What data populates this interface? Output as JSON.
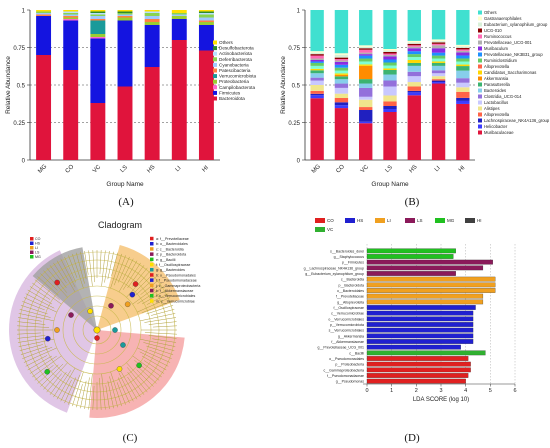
{
  "panel_labels": {
    "A": "(A)",
    "B": "(B)",
    "C": "(C)",
    "D": "(D)"
  },
  "colors": {
    "phylum": {
      "Others": "#ffe000",
      "Desulfobacterota": "#2e8b2e",
      "Actinobacteriota": "#b8e0ff",
      "Deferribacterota": "#8ad34f",
      "Cyanobacteria": "#a0c8ff",
      "Patescibacteria": "#ff8040",
      "Verrucomicrobiota": "#1a9a9a",
      "Proteobacteria": "#9acd32",
      "Campilobacterota": "#ff66cc",
      "Firmicutes": "#1414e0",
      "Bacteroidota": "#e0143c"
    },
    "genus": {
      "Others": "#40e0d0",
      "Gastranaerophilales": "#ffffcc",
      "Eubacterium_xylanophilum_group": "#d8f0d8",
      "UCG-010": "#8b0000",
      "Ruminococcus": "#ff69b4",
      "Prevotellaceae_UCG-001": "#b0b0b0",
      "Muribaculum": "#8a2be2",
      "Prevotellaceae_NK3B31_group": "#1e90ff",
      "Ruminiclostridium": "#66cc66",
      "Alloprevotella_top": "#7fffd4",
      "Candidatus_Saccharimonas": "#ffd700",
      "Akkermansia": "#ff8c00",
      "Parasutterella": "#3cb371",
      "Bacteroides": "#87ceeb",
      "Clostridia_UCG-014": "#9370db",
      "Lactobacillus": "#c8c8ff",
      "Alistipes": "#f0e68c",
      "Alloprevotella": "#ff6347",
      "Lachnospiraceae_NK4A136_group": "#2020c0",
      "Helicobacter": "#3c3cff",
      "Muribaculaceae": "#e0143c"
    },
    "groups": {
      "CO": "#e02020",
      "HS": "#2020d0",
      "LI": "#f0a020",
      "LS": "#8b1a5a",
      "MG": "#20c020",
      "HI": "#404040",
      "VC": "#30b030"
    }
  },
  "chart_data": [
    {
      "panel": "A",
      "type": "bar",
      "stacked": true,
      "ylabel": "Relative Abundance",
      "xlabel": "Group Name",
      "ylim": [
        0,
        1
      ],
      "yticks": [
        "0",
        "0.25",
        "0.5",
        "0.75",
        "1"
      ],
      "categories": [
        "MG",
        "CO",
        "VC",
        "LS",
        "HS",
        "LI",
        "HI"
      ],
      "legend": [
        "Others",
        "Desulfobacterota",
        "Actinobacteriota",
        "Deferribacterota",
        "Cyanobacteria",
        "Patescibacteria",
        "Verrucomicrobiota",
        "Proteobacteria",
        "Campilobacterota",
        "Firmicutes",
        "Bacteroidota"
      ],
      "series": [
        {
          "name": "Bacteroidota",
          "values": [
            0.7,
            0.6,
            0.38,
            0.49,
            0.62,
            0.8,
            0.73
          ]
        },
        {
          "name": "Firmicutes",
          "values": [
            0.26,
            0.33,
            0.43,
            0.44,
            0.28,
            0.14,
            0.17
          ]
        },
        {
          "name": "Campilobacterota",
          "values": [
            0.0,
            0.01,
            0.01,
            0.0,
            0.0,
            0.0,
            0.0
          ]
        },
        {
          "name": "Proteobacteria",
          "values": [
            0.0,
            0.01,
            0.02,
            0.02,
            0.02,
            0.02,
            0.02
          ]
        },
        {
          "name": "Verrucomicrobiota",
          "values": [
            0.0,
            0.0,
            0.09,
            0.0,
            0.0,
            0.0,
            0.0
          ]
        },
        {
          "name": "Patescibacteria",
          "values": [
            0.01,
            0.01,
            0.01,
            0.01,
            0.02,
            0.0,
            0.01
          ]
        },
        {
          "name": "Cyanobacteria",
          "values": [
            0.01,
            0.01,
            0.02,
            0.01,
            0.02,
            0.01,
            0.02
          ]
        },
        {
          "name": "Deferribacterota",
          "values": [
            0.01,
            0.01,
            0.01,
            0.01,
            0.02,
            0.01,
            0.02
          ]
        },
        {
          "name": "Actinobacteriota",
          "values": [
            0.0,
            0.01,
            0.01,
            0.0,
            0.01,
            0.0,
            0.01
          ]
        },
        {
          "name": "Desulfobacterota",
          "values": [
            0.0,
            0.0,
            0.01,
            0.01,
            0.0,
            0.0,
            0.01
          ]
        },
        {
          "name": "Others",
          "values": [
            0.01,
            0.01,
            0.01,
            0.01,
            0.01,
            0.02,
            0.01
          ]
        }
      ]
    },
    {
      "panel": "B",
      "type": "bar",
      "stacked": true,
      "ylabel": "Relative Abundance",
      "xlabel": "Group Name",
      "ylim": [
        0,
        1
      ],
      "yticks": [
        "0",
        "0.25",
        "0.5",
        "0.75",
        "1"
      ],
      "categories": [
        "MG",
        "CO",
        "VC",
        "LS",
        "HS",
        "LI",
        "HI"
      ],
      "legend": [
        "Others",
        "Gastranaerophilales",
        "Eubacterium_xylanophilum_group",
        "UCG-010",
        "Ruminococcus",
        "Prevotellaceae_UCG-001",
        "Muribaculum",
        "Prevotellaceae_NK3B31_group",
        "Ruminiclostridium",
        "Alloprevotella",
        "Candidatus_Saccharimonas",
        "Akkermansia",
        "Parasutterella",
        "Bacteroides",
        "Clostridia_UCG-014",
        "Lactobacillus",
        "Alistipes",
        "Alloprevotella",
        "Lachnospiraceae_NK4A136_group",
        "Helicobacter",
        "Muribaculaceae"
      ],
      "series": [
        {
          "name": "Muribaculaceae",
          "values": [
            0.42,
            0.36,
            0.25,
            0.32,
            0.44,
            0.52,
            0.37
          ]
        },
        {
          "name": "Helicobacter",
          "values": [
            0.02,
            0.02,
            0.01,
            0.02,
            0.02,
            0.01,
            0.02
          ]
        },
        {
          "name": "Lachnospiraceae_NK4A136_group",
          "values": [
            0.01,
            0.02,
            0.08,
            0.02,
            0.01,
            0.01,
            0.02
          ]
        },
        {
          "name": "Alloprevotella",
          "values": [
            0.02,
            0.03,
            0.02,
            0.03,
            0.03,
            0.01,
            0.04
          ]
        },
        {
          "name": "Alistipes",
          "values": [
            0.04,
            0.03,
            0.05,
            0.04,
            0.03,
            0.02,
            0.03
          ]
        },
        {
          "name": "Lactobacillus",
          "values": [
            0.03,
            0.04,
            0.02,
            0.06,
            0.04,
            0.02,
            0.03
          ]
        },
        {
          "name": "Clostridia_UCG-014",
          "values": [
            0.02,
            0.03,
            0.06,
            0.04,
            0.03,
            0.02,
            0.03
          ]
        },
        {
          "name": "Bacteroides",
          "values": [
            0.03,
            0.03,
            0.03,
            0.04,
            0.04,
            0.03,
            0.05
          ]
        },
        {
          "name": "Parasutterella",
          "values": [
            0.02,
            0.02,
            0.03,
            0.03,
            0.02,
            0.02,
            0.03
          ]
        },
        {
          "name": "Akkermansia",
          "values": [
            0.0,
            0.01,
            0.09,
            0.0,
            0.0,
            0.0,
            0.0
          ]
        },
        {
          "name": "Candidatus_Saccharimonas",
          "values": [
            0.01,
            0.01,
            0.01,
            0.01,
            0.02,
            0.01,
            0.01
          ]
        },
        {
          "name": "Alloprevotella_top",
          "values": [
            0.02,
            0.02,
            0.02,
            0.02,
            0.02,
            0.02,
            0.02
          ]
        },
        {
          "name": "Ruminiclostridium",
          "values": [
            0.02,
            0.02,
            0.02,
            0.02,
            0.02,
            0.02,
            0.02
          ]
        },
        {
          "name": "Prevotellaceae_NK3B31_group",
          "values": [
            0.01,
            0.02,
            0.02,
            0.02,
            0.02,
            0.02,
            0.02
          ]
        },
        {
          "name": "Muribaculum",
          "values": [
            0.01,
            0.02,
            0.01,
            0.02,
            0.02,
            0.03,
            0.02
          ]
        },
        {
          "name": "Prevotellaceae_UCG-001",
          "values": [
            0.01,
            0.01,
            0.01,
            0.01,
            0.01,
            0.02,
            0.01
          ]
        },
        {
          "name": "Ruminococcus",
          "values": [
            0.02,
            0.01,
            0.02,
            0.01,
            0.01,
            0.01,
            0.01
          ]
        },
        {
          "name": "UCG-010",
          "values": [
            0.01,
            0.01,
            0.01,
            0.01,
            0.01,
            0.01,
            0.01
          ]
        },
        {
          "name": "Eubacterium_xylanophilum_group",
          "values": [
            0.01,
            0.02,
            0.01,
            0.01,
            0.01,
            0.01,
            0.01
          ]
        },
        {
          "name": "Gastranaerophilales",
          "values": [
            0.01,
            0.01,
            0.01,
            0.01,
            0.01,
            0.01,
            0.01
          ]
        },
        {
          "name": "Others",
          "values": [
            0.28,
            0.3,
            0.24,
            0.26,
            0.21,
            0.2,
            0.23
          ]
        }
      ]
    },
    {
      "panel": "D",
      "type": "bar",
      "orientation": "horizontal",
      "xlabel": "LDA SCORE (log 10)",
      "xlim": [
        0,
        6
      ],
      "xticks": [
        "0",
        "1",
        "2",
        "3",
        "4",
        "5",
        "6"
      ],
      "legend": [
        {
          "group": "CO",
          "color": "#e02020"
        },
        {
          "group": "HS",
          "color": "#2020d0"
        },
        {
          "group": "LI",
          "color": "#f0a020"
        },
        {
          "group": "LS",
          "color": "#8b1a5a"
        },
        {
          "group": "MG",
          "color": "#20c020"
        },
        {
          "group": "HI",
          "color": "#404040"
        },
        {
          "group": "VC",
          "color": "#30b030"
        }
      ],
      "bars": [
        {
          "label": "s__Bacteroides_dorei",
          "value": 3.6,
          "group": "MG"
        },
        {
          "label": "g__Staphylococcus",
          "value": 3.5,
          "group": "MG"
        },
        {
          "label": "p__Firmicutes",
          "value": 5.1,
          "group": "LS"
        },
        {
          "label": "g__Lachnospiraceae_NK4A136_group",
          "value": 4.7,
          "group": "LS"
        },
        {
          "label": "g__Eubacterium_xylanophilum_group",
          "value": 3.6,
          "group": "LS"
        },
        {
          "label": "c__Bacteroidia",
          "value": 5.2,
          "group": "LI"
        },
        {
          "label": "p__Bacteroidota",
          "value": 5.2,
          "group": "LI"
        },
        {
          "label": "o__Bacteroidales",
          "value": 5.2,
          "group": "LI"
        },
        {
          "label": "f__Prevotellaceae",
          "value": 4.7,
          "group": "LI"
        },
        {
          "label": "g__Alloprevotella",
          "value": 4.7,
          "group": "LI"
        },
        {
          "label": "f__Oscillospiraceae",
          "value": 4.4,
          "group": "HS"
        },
        {
          "label": "c__Verrucomicrobiae",
          "value": 4.3,
          "group": "HS"
        },
        {
          "label": "o__Verrucomicrobiales",
          "value": 4.3,
          "group": "HS"
        },
        {
          "label": "p__Verrucomicrobiota",
          "value": 4.3,
          "group": "HS"
        },
        {
          "label": "s__Verrucomicrobiales",
          "value": 4.3,
          "group": "HS"
        },
        {
          "label": "g__Akkermansia",
          "value": 4.3,
          "group": "HS"
        },
        {
          "label": "f__Akkermansiaceae",
          "value": 4.3,
          "group": "HS"
        },
        {
          "label": "g__Prevotellaceae_UCG_001",
          "value": 3.8,
          "group": "HS"
        },
        {
          "label": "c__Bacilli",
          "value": 4.8,
          "group": "VC"
        },
        {
          "label": "o__Pseudomonadales",
          "value": 4.1,
          "group": "CO"
        },
        {
          "label": "p__Proteobacteria",
          "value": 4.2,
          "group": "CO"
        },
        {
          "label": "c__Gammaproteobacteria",
          "value": 4.2,
          "group": "CO"
        },
        {
          "label": "f__Pseudomonadaceae",
          "value": 4.1,
          "group": "CO"
        },
        {
          "label": "g__Pseudomonas",
          "value": 4.0,
          "group": "CO"
        }
      ]
    }
  ],
  "cladogram": {
    "title": "Cladogram",
    "legend": [
      "a: f__Prevotellaceae",
      "b: o__Bacteroidales",
      "c: c__Bacteroidia",
      "d: p__Bacteroidota",
      "e: g__Bacilli",
      "f: f__Oscillospiraceae",
      "g: g__Bacteroides",
      "h: o__Pseudomonadales",
      "i: f__Pseudomonadaceae",
      "j: c__Gammaproteobacteria",
      "k: f__Akkermansiaceae",
      "l: o__Verrucomicrobiales",
      "m: c__Verrucomicrobiae"
    ],
    "group_legend": [
      "CO",
      "HS",
      "LI",
      "LS",
      "MG"
    ],
    "sectors": [
      {
        "name": "p__Bacteroidota",
        "color": "#f5c070"
      },
      {
        "name": "p__Firmicutes",
        "color": "#d8b8e0"
      },
      {
        "name": "p__Proteobacteria",
        "color": "#f5a0a0"
      },
      {
        "name": "MG_sector",
        "color": "#a0a0a0"
      }
    ]
  }
}
